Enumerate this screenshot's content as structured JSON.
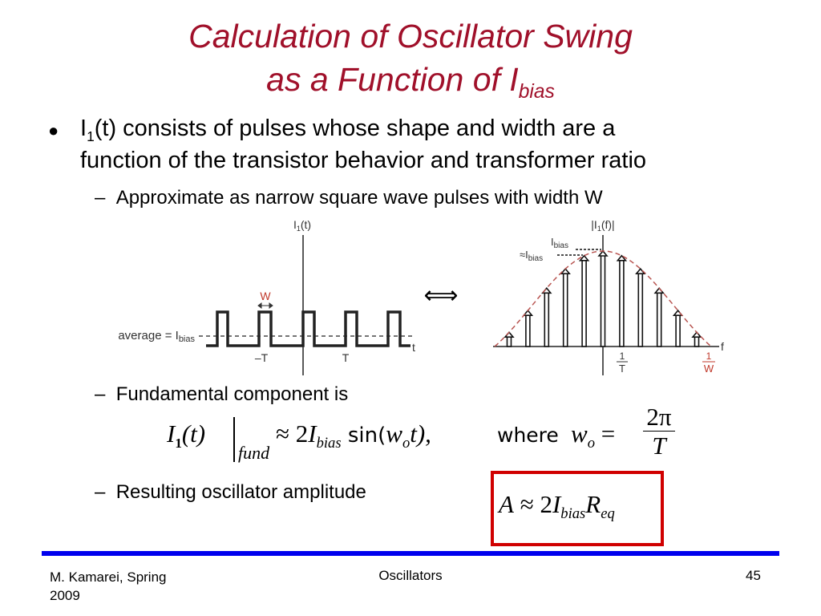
{
  "title": {
    "line1": "Calculation of Oscillator Swing",
    "line2_prefix": "as a Function of I",
    "line2_sub": "bias"
  },
  "bullet": {
    "symbol": "●",
    "prefix": "I",
    "prefix_sub": "1",
    "line1_rest": "(t) consists of pulses whose shape and width are a",
    "line2": "function of the transistor behavior and transformer ratio"
  },
  "sub_bullets": [
    {
      "dash": "–",
      "text": "Approximate as narrow square wave pulses with width W"
    },
    {
      "dash": "–",
      "text": "Fundamental component is"
    },
    {
      "dash": "–",
      "text": "Resulting oscillator amplitude"
    }
  ],
  "time_plot": {
    "ylabel": "I",
    "ylabel_sub": "1",
    "ylabel_rest": "(t)",
    "avg_label": "average = I",
    "avg_sub": "bias",
    "width_label": "W",
    "ticks": [
      "–T",
      "T"
    ],
    "xlabel": "t"
  },
  "equivalence_symbol": "⟺",
  "freq_plot": {
    "ylabel": "|I",
    "ylabel_sub": "1",
    "ylabel_rest": "(f)|",
    "peak_label": "I",
    "peak_sub": "bias",
    "approx_label": "≈I",
    "approx_sub": "bias",
    "tick_1T_num": "1",
    "tick_1T_den": "T",
    "tick_1W_num": "1",
    "tick_1W_den": "W",
    "xlabel": "f"
  },
  "equation_fund": {
    "lhs": "I",
    "lhs_sub": "1",
    "lhs_arg": "(t)",
    "eval_sub": "fund",
    "rhs_pre": "≈ 2",
    "rhs_I": "I",
    "rhs_sub": "bias",
    "rhs_sin": " sin(",
    "rhs_w": "w",
    "rhs_w_sub": "o",
    "rhs_t": "t),",
    "where": "where",
    "w": "w",
    "w_sub": "o",
    "eq": "=",
    "frac_num": "2π",
    "frac_den": "T"
  },
  "equation_amp": {
    "A": "A",
    "approx": " ≈ 2",
    "I": "I",
    "I_sub": "bias",
    "R": "R",
    "R_sub": "eq"
  },
  "colors": {
    "title": "#A0102A",
    "footer_rule": "#0000EE",
    "highlight_box": "#D00000",
    "accent_label": "#C0392B"
  },
  "footer": {
    "author_line1": "M. Kamarei, Spring",
    "author_line2": "2009",
    "center": "Oscillators",
    "page": "45"
  }
}
